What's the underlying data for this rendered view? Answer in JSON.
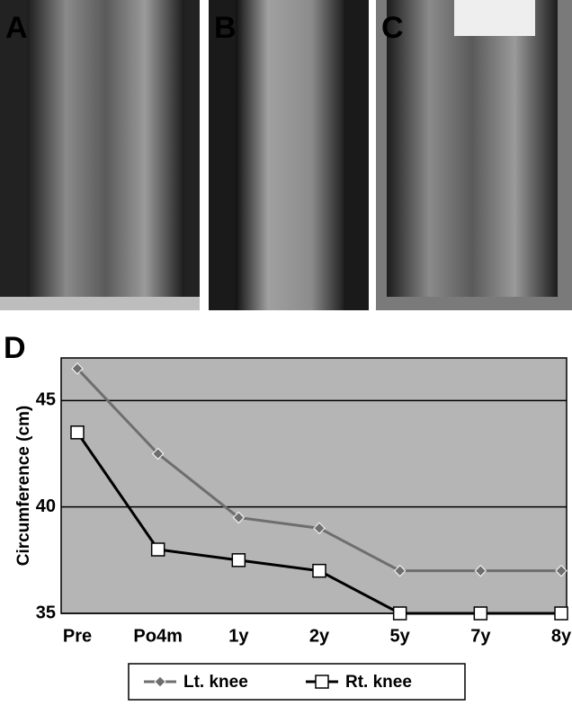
{
  "panel_labels": [
    "A",
    "B",
    "C",
    "D"
  ],
  "chart_data": {
    "type": "line",
    "y_label": "Circumference (cm)",
    "categories": [
      "Pre",
      "Po4m",
      "1y",
      "2y",
      "5y",
      "7y",
      "8y"
    ],
    "series": [
      {
        "name": "Lt. knee",
        "color": "#6e6e6e",
        "marker": "diamond",
        "values": [
          46.5,
          42.5,
          39.5,
          39,
          37,
          37,
          37
        ]
      },
      {
        "name": "Rt. knee",
        "color": "#000000",
        "marker": "square",
        "values": [
          43.5,
          38,
          37.5,
          37,
          35,
          35,
          35
        ]
      }
    ],
    "ylim": [
      35,
      47
    ],
    "yticks": [
      35,
      40,
      45
    ],
    "grid": true,
    "legend": "bottom",
    "background": "#b5b5b5"
  }
}
